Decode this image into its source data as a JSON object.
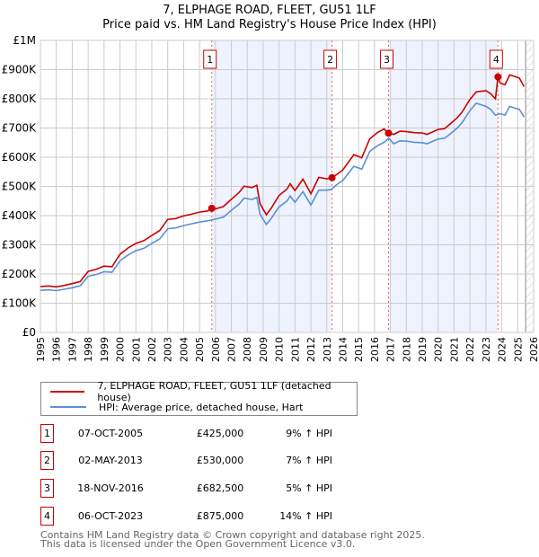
{
  "chart_data": {
    "type": "line",
    "title": "7, ELPHAGE ROAD, FLEET, GU51 1LF",
    "subtitle": "Price paid vs. HM Land Registry's House Price Index (HPI)",
    "xlim": [
      1995,
      2026
    ],
    "ylim": [
      0,
      1000000
    ],
    "x_ticks": [
      "1995",
      "1996",
      "1997",
      "1998",
      "1999",
      "2000",
      "2001",
      "2002",
      "2003",
      "2004",
      "2005",
      "2006",
      "2007",
      "2008",
      "2009",
      "2010",
      "2011",
      "2012",
      "2013",
      "2014",
      "2015",
      "2016",
      "2017",
      "2018",
      "2019",
      "2020",
      "2021",
      "2022",
      "2023",
      "2024",
      "2025",
      "2026"
    ],
    "y_ticks": [
      {
        "v": 0,
        "label": "£0"
      },
      {
        "v": 100000,
        "label": "£100K"
      },
      {
        "v": 200000,
        "label": "£200K"
      },
      {
        "v": 300000,
        "label": "£300K"
      },
      {
        "v": 400000,
        "label": "£400K"
      },
      {
        "v": 500000,
        "label": "£500K"
      },
      {
        "v": 600000,
        "label": "£600K"
      },
      {
        "v": 700000,
        "label": "£700K"
      },
      {
        "v": 800000,
        "label": "£800K"
      },
      {
        "v": 900000,
        "label": "£900K"
      },
      {
        "v": 1000000,
        "label": "£1M"
      }
    ],
    "grid": true,
    "forecast_hatch_from": 2025.5,
    "series": [
      {
        "name": "7, ELPHAGE ROAD, FLEET, GU51 1LF (detached house)",
        "color": "#cc0000",
        "x": [
          1995,
          1995.5,
          1996,
          1996.5,
          1997,
          1997.5,
          1998,
          1998.5,
          1999,
          1999.5,
          2000,
          2000.5,
          2001,
          2001.5,
          2002,
          2002.5,
          2003,
          2003.5,
          2004,
          2004.5,
          2005,
          2005.5,
          2005.77,
          2006,
          2006.5,
          2007,
          2007.5,
          2007.8,
          2008.3,
          2008.6,
          2008.8,
          2009.2,
          2009.5,
          2010,
          2010.5,
          2010.7,
          2011,
          2011.5,
          2012,
          2012.5,
          2013,
          2013.33,
          2013.6,
          2014,
          2014.7,
          2015.2,
          2015.7,
          2016.2,
          2016.6,
          2016.88,
          2017.2,
          2017.6,
          2018,
          2018.5,
          2019,
          2019.3,
          2020,
          2020.4,
          2020.7,
          2021.2,
          2021.5,
          2022,
          2022.4,
          2023,
          2023.3,
          2023.6,
          2023.76,
          2023.9,
          2024.2,
          2024.5,
          2024.8,
          2025.1,
          2025.4
        ],
        "values": [
          157,
          159,
          156,
          161,
          167,
          174,
          209,
          216,
          227,
          225,
          267,
          289,
          305,
          314,
          332,
          349,
          387,
          390,
          399,
          405,
          412,
          416,
          425,
          423,
          431,
          456,
          480,
          501,
          496,
          504,
          441,
          403,
          425,
          469,
          491,
          509,
          486,
          525,
          475,
          531,
          526,
          530,
          540,
          556,
          609,
          598,
          663,
          685,
          697,
          682.5,
          678,
          689,
          688,
          684,
          683,
          678,
          695,
          698,
          711,
          735,
          754,
          798,
          824,
          828,
          818,
          800,
          875,
          854,
          848,
          882,
          877,
          871,
          842
        ]
      },
      {
        "name": "HPI: Average price, detached house, Hart",
        "color": "#5b8fd6",
        "x": [
          1995,
          1995.5,
          1996,
          1996.5,
          1997,
          1997.5,
          1998,
          1998.5,
          1999,
          1999.5,
          2000,
          2000.5,
          2001,
          2001.5,
          2002,
          2002.5,
          2003,
          2003.5,
          2004,
          2004.5,
          2005,
          2005.5,
          2006,
          2006.5,
          2007,
          2007.5,
          2007.8,
          2008.3,
          2008.6,
          2008.8,
          2009.2,
          2009.5,
          2010,
          2010.5,
          2010.7,
          2011,
          2011.5,
          2012,
          2012.5,
          2013,
          2013.3,
          2013.6,
          2014,
          2014.7,
          2015.2,
          2015.7,
          2016.2,
          2016.6,
          2016.9,
          2017.2,
          2017.6,
          2018,
          2018.5,
          2019,
          2019.3,
          2020,
          2020.4,
          2020.7,
          2021.2,
          2021.5,
          2022,
          2022.4,
          2023,
          2023.3,
          2023.6,
          2023.9,
          2024.2,
          2024.5,
          2024.8,
          2025.1,
          2025.4
        ],
        "values": [
          144,
          146,
          143,
          148,
          153,
          160,
          192,
          198,
          208,
          206,
          245,
          265,
          280,
          288,
          305,
          320,
          355,
          358,
          366,
          372,
          378,
          382,
          388,
          395,
          418,
          440,
          460,
          455,
          462,
          405,
          370,
          390,
          430,
          450,
          467,
          446,
          482,
          436,
          487,
          487,
          490,
          505,
          520,
          569,
          559,
          620,
          640,
          651,
          665,
          646,
          656,
          655,
          651,
          650,
          646,
          662,
          665,
          677,
          700,
          718,
          760,
          785,
          774,
          764,
          744,
          749,
          744,
          774,
          769,
          764,
          738
        ]
      }
    ],
    "value_unit": "£ thousands",
    "sales": [
      {
        "n": "1",
        "x": 2005.77,
        "value": 425,
        "date": "07-OCT-2005",
        "price": "£425,000",
        "hpi": "9% ↑ HPI"
      },
      {
        "n": "2",
        "x": 2013.33,
        "value": 530,
        "date": "02-MAY-2013",
        "price": "£530,000",
        "hpi": "7% ↑ HPI"
      },
      {
        "n": "3",
        "x": 2016.88,
        "value": 682.5,
        "date": "18-NOV-2016",
        "price": "£682,500",
        "hpi": "5% ↑ HPI"
      },
      {
        "n": "4",
        "x": 2023.76,
        "value": 875,
        "date": "06-OCT-2023",
        "price": "£875,000",
        "hpi": "14% ↑ HPI"
      }
    ]
  },
  "footer": {
    "line1": "Contains HM Land Registry data © Crown copyright and database right 2025.",
    "line2": "This data is licensed under the Open Government Licence v3.0."
  }
}
